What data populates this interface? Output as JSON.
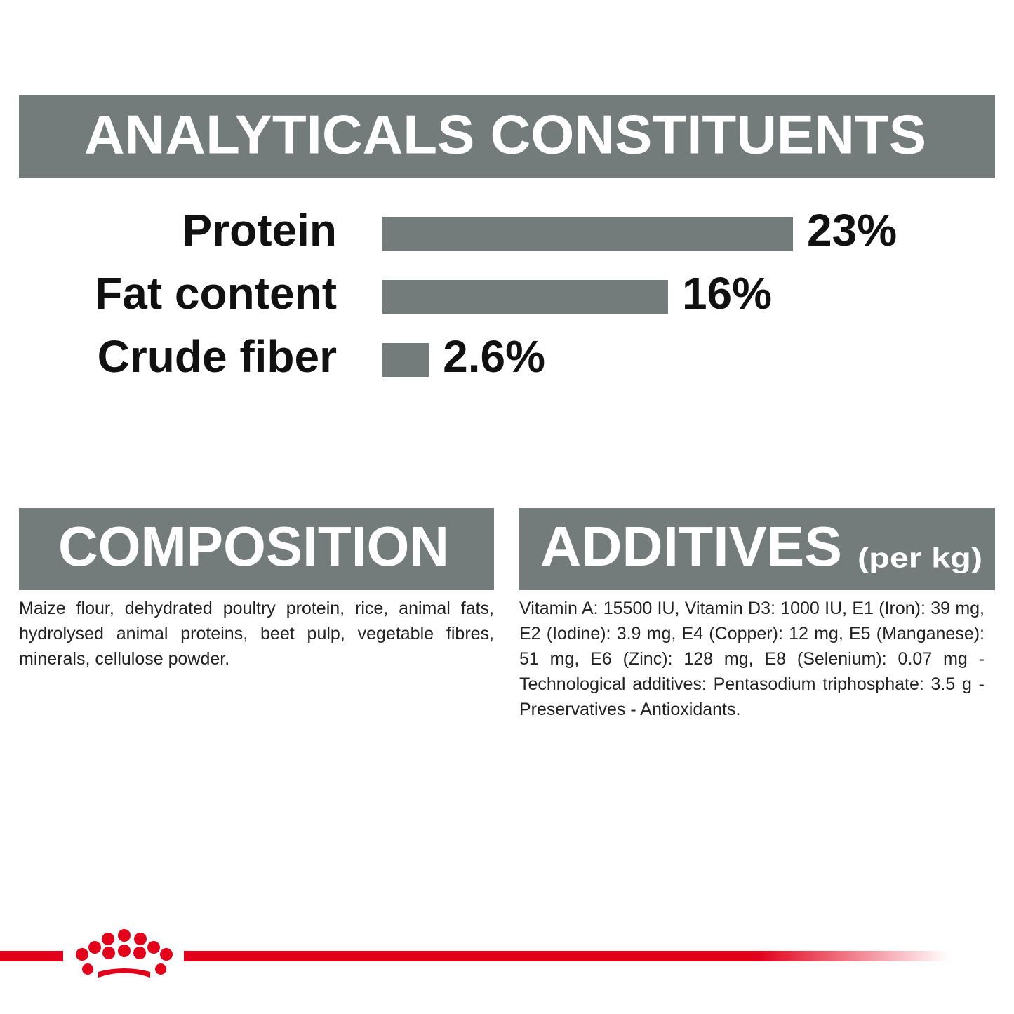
{
  "chart_data": {
    "type": "bar",
    "title": "ANALYTICALS CONSTITUENTS",
    "categories": [
      "Protein",
      "Fat content",
      "Crude fiber"
    ],
    "values": [
      23,
      16,
      2.6
    ],
    "value_labels": [
      "23%",
      "16%",
      "2.6%"
    ],
    "color": "#737b7b"
  },
  "composition": {
    "title": "COMPOSITION",
    "text": "Maize flour, dehydrated poultry protein, rice, animal fats, hydrolysed animal proteins, beet pulp, vegetable fibres, minerals, cellulose powder."
  },
  "additives": {
    "title": "ADDITIVES",
    "subtitle": "(per kg)",
    "text": "Vitamin A: 15500 IU, Vitamin D3: 1000 IU, E1 (Iron): 39 mg, E2 (Iodine): 3.9 mg, E4 (Copper): 12 mg, E5 (Manganese): 51 mg, E6 (Zinc): 128 mg, E8 (Selenium): 0.07 mg - Technological additives: Pentasodium triphosphate: 3.5 g - Preservatives - Antioxidants."
  }
}
